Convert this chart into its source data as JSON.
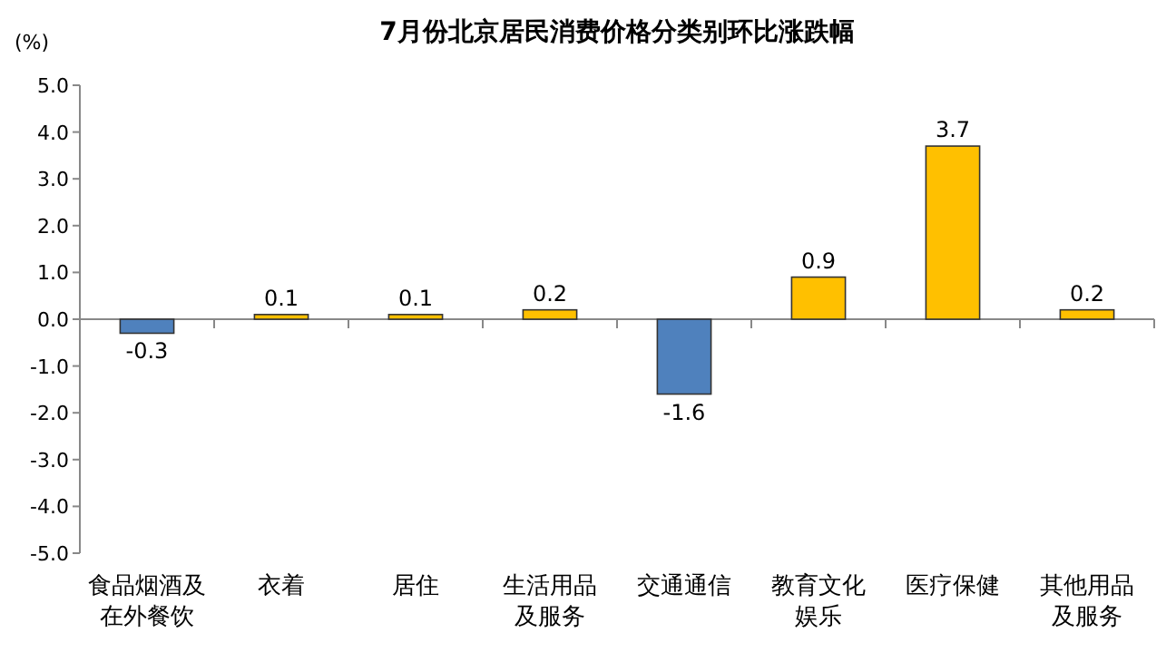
{
  "chart_data": {
    "type": "bar",
    "title": "7月份北京居民消费价格分类别环比涨跌幅",
    "ylabel": "(%)",
    "categories": [
      "食品烟酒及在外餐饮",
      "衣着",
      "居住",
      "生活用品及服务",
      "交通通信",
      "教育文化娱乐",
      "医疗保健",
      "其他用品及服务"
    ],
    "values": [
      -0.3,
      0.1,
      0.1,
      0.2,
      -1.6,
      0.9,
      3.7,
      0.2
    ],
    "colors": [
      "#4f81bd",
      "#ffc000",
      "#ffc000",
      "#ffc000",
      "#4f81bd",
      "#ffc000",
      "#ffc000",
      "#ffc000"
    ],
    "ylim": [
      -5,
      5
    ],
    "yticks": [
      {
        "value": -5,
        "label": "-5.0"
      },
      {
        "value": -4,
        "label": "-4.0"
      },
      {
        "value": -3,
        "label": "-3.0"
      },
      {
        "value": -2,
        "label": "-2.0"
      },
      {
        "value": -1,
        "label": "-1.0"
      },
      {
        "value": 0,
        "label": "0.0"
      },
      {
        "value": 1,
        "label": "1.0"
      },
      {
        "value": 2,
        "label": "2.0"
      },
      {
        "value": 3,
        "label": "3.0"
      },
      {
        "value": 4,
        "label": "4.0"
      },
      {
        "value": 5,
        "label": "5.0"
      }
    ],
    "data_labels": true
  }
}
